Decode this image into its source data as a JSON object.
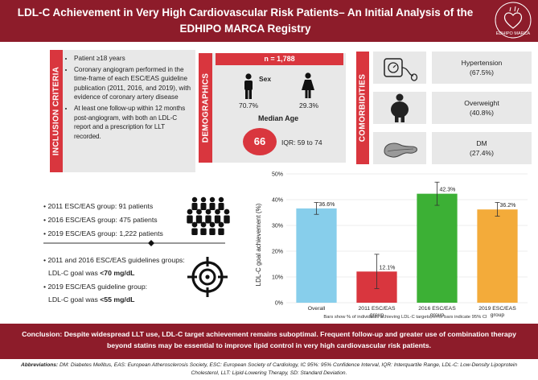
{
  "header": {
    "title": "LDL-C Achievement in Very High Cardiovascular Risk Patients– An Initial Analysis of the EDHIPO MARCA Registry",
    "logo_text": "EDHIPO MARCA"
  },
  "inclusion": {
    "label": "INCLUSION CRITERIA",
    "items": [
      "Patient ≥18 years",
      "Coronary angiogram performed in the time-frame of each ESC/EAS guideline publication (2011, 2016, and 2019), with evidence of coronary artery disease",
      "At least one follow-up within 12 months post-angiogram, with both an LDL-C report and a prescription for LLT recorded."
    ]
  },
  "demographics": {
    "label": "DEMOGRAPHICS",
    "n": "n = 1,788",
    "sex_label": "Sex",
    "male_pct": "70.7%",
    "female_pct": "29.3%",
    "median_label": "Median Age",
    "median_value": "66",
    "iqr": "IQR: 59 to 74"
  },
  "comorbidities": {
    "label": "COMORBIDITIES",
    "items": [
      {
        "name": "Hypertension",
        "value": "(67.5%)"
      },
      {
        "name": "Overweight",
        "value": "(40.8%)"
      },
      {
        "name": "DM",
        "value": "(27.4%)"
      }
    ]
  },
  "groups": {
    "items": [
      "• 2011 ESC/EAS group: 91 patients",
      "• 2016 ESC/EAS group: 475 patients",
      "• 2019 ESC/EAS group: 1,222 patients"
    ],
    "goal1_line1": "• 2011 and 2016 ESC/EAS guidelines groups:",
    "goal1_line2_prefix": "LDL-C goal was ",
    "goal1_value": "<70 mg/dL",
    "goal2_line1": "• 2019 ESC/EAS guideline group:",
    "goal2_line2_prefix": "LDL-C goal was ",
    "goal2_value": "<55 mg/dL"
  },
  "chart_data": {
    "type": "bar",
    "ylabel": "LDL-C goal achievement (%)",
    "ylim": [
      0,
      50
    ],
    "yticks": [
      "0%",
      "10%",
      "20%",
      "30%",
      "40%",
      "50%"
    ],
    "categories": [
      "Overall",
      "2011 ESC/EAS group",
      "2016 ESC/EAS group",
      "2019 ESC/EAS group"
    ],
    "category_lines": [
      [
        "Overall"
      ],
      [
        "2011 ESC/EAS",
        "group"
      ],
      [
        "2016 ESC/EAS",
        "group"
      ],
      [
        "2019 ESC/EAS",
        "group"
      ]
    ],
    "values": [
      36.6,
      12.1,
      42.3,
      36.2
    ],
    "value_labels": [
      "36.6%",
      "12.1%",
      "42.3%",
      "36.2%"
    ],
    "ci_low": [
      34.3,
      5.5,
      37.8,
      33.6
    ],
    "ci_high": [
      38.9,
      18.8,
      46.8,
      38.9
    ],
    "colors": [
      "#87ceeb",
      "#d9363e",
      "#3cb035",
      "#f3ab3a"
    ],
    "note": "Bars show % of individuals achieving LDL-C targets; error bars indicate 95% CI"
  },
  "conclusion": "Conclusion: Despite widespread LLT use, LDL-C target achievement remains suboptimal. Frequent follow-up and greater use of combination therapy beyond statins may be essential to improve lipid control in very high cardiovascular risk patients.",
  "abbreviations": {
    "label": "Abbreviations:",
    "text": " DM: Diabetes Mellitus, EAS: European Atherosclerosis Society, ESC: European Society of Cardiology, IC 95%: 95% Confidence Interval, IQR: Interquartile Range, LDL-C: Low-Density Lipoprotein Cholesterol, LLT: Lipid-Lowering Therapy, SD: Standard Deviation."
  }
}
